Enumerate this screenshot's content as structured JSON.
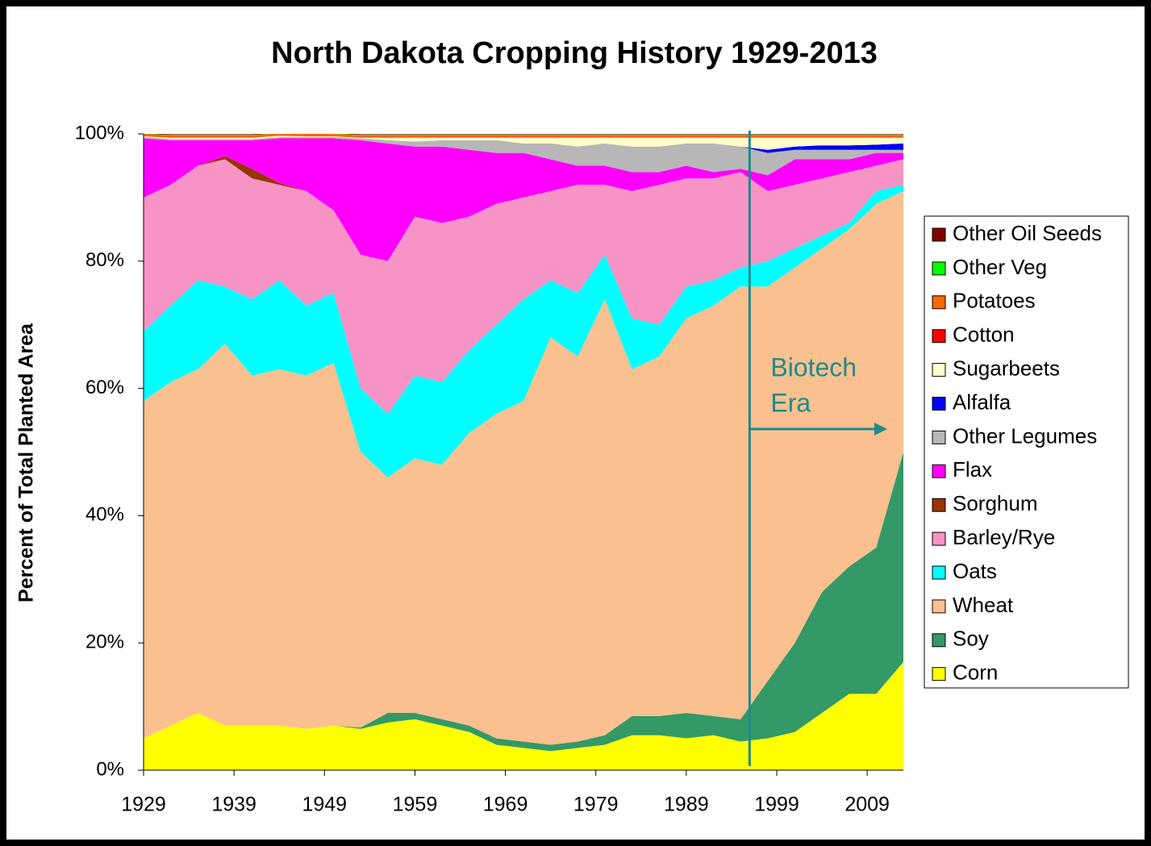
{
  "chart_data": {
    "type": "stacked_area",
    "title": "North Dakota Cropping History 1929-2013",
    "y_label": "Percent of Total Planted Area",
    "x": [
      1929,
      1932,
      1935,
      1938,
      1941,
      1944,
      1947,
      1950,
      1953,
      1956,
      1959,
      1962,
      1965,
      1968,
      1971,
      1974,
      1977,
      1980,
      1983,
      1986,
      1989,
      1992,
      1995,
      1998,
      2001,
      2004,
      2007,
      2010,
      2013
    ],
    "xlim": [
      1929,
      2013
    ],
    "xticks": [
      1929,
      1939,
      1949,
      1959,
      1969,
      1979,
      1989,
      1999,
      2009
    ],
    "ylim": [
      0,
      100
    ],
    "yticks": [
      {
        "value": 0,
        "label": "0%"
      },
      {
        "value": 20,
        "label": "20%"
      },
      {
        "value": 40,
        "label": "40%"
      },
      {
        "value": 60,
        "label": "60%"
      },
      {
        "value": 80,
        "label": "80%"
      },
      {
        "value": 100,
        "label": "100%"
      }
    ],
    "series": [
      {
        "name": "Corn",
        "color": "#ffff00",
        "values": [
          5,
          7,
          9,
          7,
          7,
          7,
          6.5,
          7,
          6.5,
          7.5,
          8,
          7,
          6,
          4,
          3.5,
          3,
          3.5,
          4,
          5.5,
          5.5,
          5,
          5.5,
          4.5,
          5,
          6,
          9,
          12,
          12,
          17
        ]
      },
      {
        "name": "Soy",
        "color": "#339966",
        "values": [
          0,
          0,
          0,
          0,
          0,
          0,
          0,
          0,
          0.2,
          1.5,
          1,
          1,
          1,
          1,
          1,
          1,
          1,
          1.5,
          3,
          3,
          4,
          3,
          3.5,
          9,
          14,
          19,
          20,
          23,
          33
        ]
      },
      {
        "name": "Wheat",
        "color": "#fac090",
        "values": [
          53,
          54,
          54,
          60,
          55,
          56,
          55.5,
          57,
          43.3,
          37,
          40,
          40,
          46,
          51,
          53.5,
          64,
          60.5,
          68.5,
          54.5,
          56.5,
          62,
          64.5,
          68,
          62,
          59,
          54,
          53,
          54,
          41
        ]
      },
      {
        "name": "Oats",
        "color": "#00ffff",
        "values": [
          11,
          12,
          14,
          9,
          12,
          14,
          11,
          11,
          10,
          10,
          13,
          13,
          13,
          14,
          16,
          9,
          10,
          7,
          8,
          5,
          5,
          4,
          3,
          4,
          3,
          2,
          1,
          2,
          1
        ]
      },
      {
        "name": "Barley/Rye",
        "color": "#f893c6",
        "values": [
          21,
          19,
          18,
          20,
          19,
          15,
          18,
          13,
          21,
          24,
          25,
          25,
          21,
          19,
          16,
          14,
          17,
          11,
          20,
          22,
          17,
          16,
          15,
          11,
          10,
          9,
          8,
          4,
          4
        ]
      },
      {
        "name": "Sorghum",
        "color": "#993300",
        "values": [
          0,
          0,
          0,
          0.5,
          1.5,
          0.3,
          0,
          0,
          0,
          0,
          0,
          0,
          0,
          0,
          0,
          0,
          0,
          0,
          0,
          0,
          0,
          0,
          0,
          0,
          0,
          0,
          0,
          0,
          0
        ]
      },
      {
        "name": "Flax",
        "color": "#ff00ff",
        "values": [
          9.3,
          7,
          4,
          2.5,
          4.5,
          7,
          8.3,
          11.3,
          18,
          18.5,
          11,
          12,
          10.5,
          8,
          7,
          5,
          3,
          3,
          3,
          2,
          2,
          1,
          0.5,
          2.5,
          4,
          3,
          2,
          2,
          1
        ]
      },
      {
        "name": "Other Legumes",
        "color": "#b7b7b7",
        "values": [
          0.2,
          0.2,
          0.2,
          0.2,
          0.2,
          0.2,
          0.2,
          0.2,
          0.3,
          0.5,
          0.8,
          1,
          1.5,
          2,
          1.5,
          2.5,
          3,
          3.5,
          4,
          4,
          3.5,
          4.5,
          3.5,
          3.5,
          1.5,
          1.5,
          1.5,
          0.5,
          0.5
        ]
      },
      {
        "name": "Alfalfa",
        "color": "#0000ff",
        "values": [
          0,
          0,
          0,
          0,
          0,
          0,
          0,
          0,
          0,
          0,
          0,
          0,
          0,
          0,
          0,
          0,
          0,
          0,
          0,
          0,
          0,
          0,
          0,
          0.5,
          0.5,
          0.7,
          0.7,
          0.8,
          1
        ]
      },
      {
        "name": "Sugarbeets",
        "color": "#ffffcc",
        "values": [
          0.1,
          0.2,
          0.2,
          0.2,
          0.2,
          0.2,
          0.1,
          0.1,
          0.1,
          0.4,
          0.6,
          0.4,
          0.4,
          0.4,
          0.9,
          0.9,
          1.4,
          0.9,
          1.4,
          1.4,
          0.9,
          0.9,
          1.4,
          1.9,
          1.4,
          1.2,
          1.2,
          1.1,
          0.9
        ]
      },
      {
        "name": "Cotton",
        "color": "#ff0000",
        "values": [
          0,
          0,
          0,
          0,
          0,
          0,
          0,
          0,
          0,
          0,
          0,
          0,
          0,
          0,
          0,
          0,
          0,
          0,
          0,
          0,
          0,
          0,
          0,
          0,
          0,
          0,
          0,
          0,
          0
        ]
      },
      {
        "name": "Potatoes",
        "color": "#ff6600",
        "values": [
          0.4,
          0.4,
          0.4,
          0.4,
          0.4,
          0.4,
          0.4,
          0.4,
          0.4,
          0.4,
          0.4,
          0.4,
          0.4,
          0.4,
          0.4,
          0.4,
          0.4,
          0.4,
          0.4,
          0.4,
          0.4,
          0.4,
          0.4,
          0.4,
          0.4,
          0.4,
          0.4,
          0.4,
          0.4
        ]
      },
      {
        "name": "Other Veg",
        "color": "#00ff00",
        "values": [
          0.05,
          0.05,
          0.05,
          0.05,
          0.05,
          0.05,
          0.05,
          0.05,
          0.05,
          0.05,
          0.05,
          0.05,
          0.05,
          0.05,
          0.05,
          0.05,
          0.05,
          0.05,
          0.05,
          0.05,
          0.05,
          0.05,
          0.05,
          0.05,
          0.05,
          0.05,
          0.05,
          0.05,
          0.05
        ]
      },
      {
        "name": "Other Oil Seeds",
        "color": "#800000",
        "values": [
          0.1,
          0.1,
          0.1,
          0.1,
          0.1,
          0.1,
          0.1,
          0.1,
          0.1,
          0.1,
          0.1,
          0.1,
          0.1,
          0.1,
          0.1,
          0.1,
          0.1,
          0.1,
          0.1,
          0.1,
          0.1,
          0.1,
          0.1,
          0.1,
          0.1,
          0.1,
          0.1,
          0.1,
          0.1
        ]
      }
    ],
    "annotation": {
      "lines": [
        "Biotech",
        "Era"
      ],
      "x": 1996,
      "color": "#1f8a8a"
    }
  }
}
